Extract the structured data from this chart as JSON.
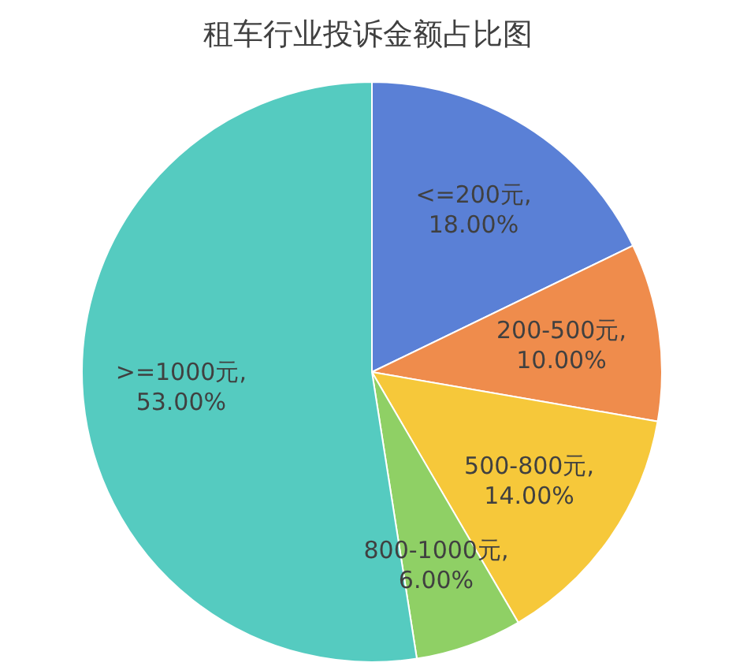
{
  "chart_data": {
    "type": "pie",
    "title": "租车行业投诉金额占比图",
    "categories": [
      "<=200元",
      "200-500元",
      "500-800元",
      "800-1000元",
      ">=1000元"
    ],
    "values": [
      18,
      10,
      14,
      6,
      53
    ],
    "value_labels": [
      ",\n18.00%",
      ",\n10.00%",
      ",\n14.00%",
      ",\n6.00%",
      ",\n53.00%"
    ],
    "colors": [
      "#5a80d6",
      "#ef8c4c",
      "#f6c83a",
      "#8fd065",
      "#55cbc0"
    ]
  }
}
